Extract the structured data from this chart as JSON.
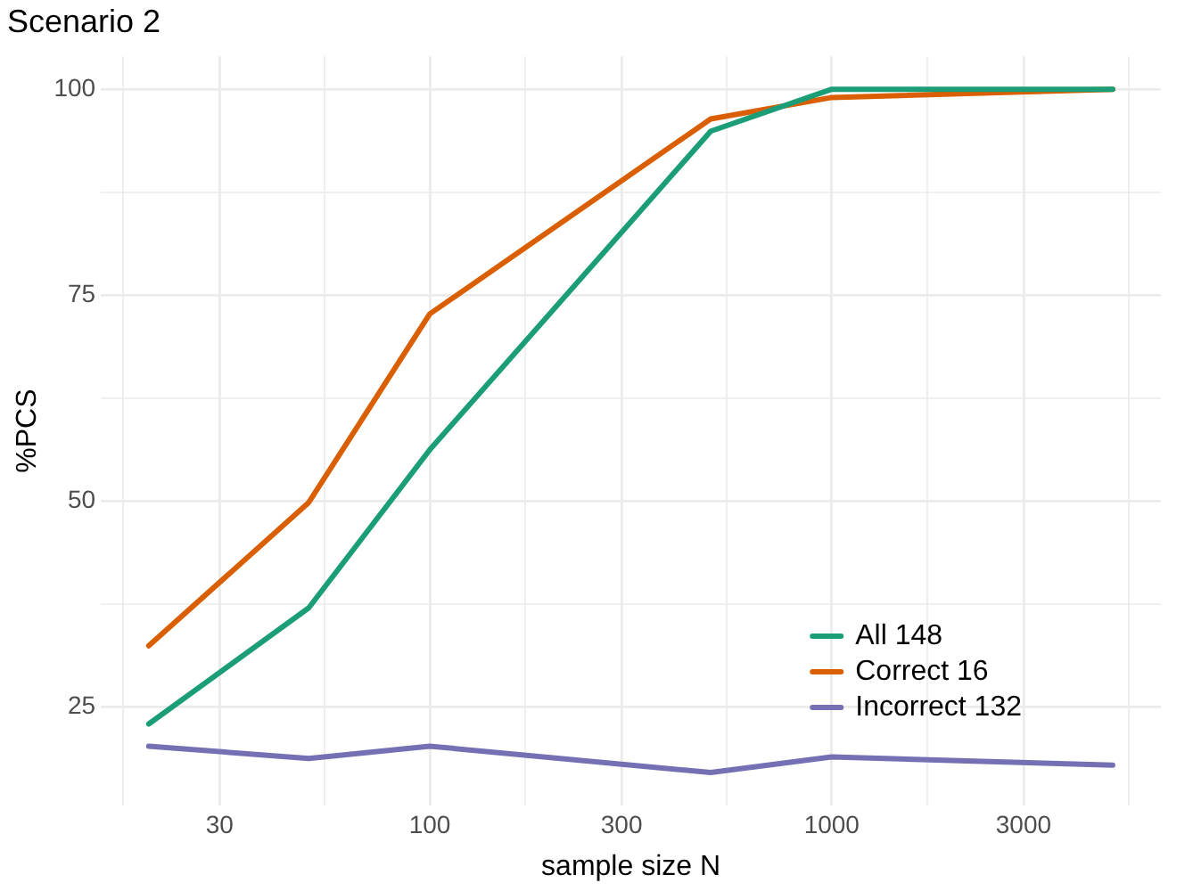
{
  "chart_data": {
    "type": "line",
    "title": "Scenario 2",
    "xlabel": "sample size N",
    "ylabel": "%PCS",
    "x": [
      20,
      50,
      100,
      500,
      1000,
      5000
    ],
    "series": [
      {
        "name": "All 148",
        "color": "#1b9e77",
        "values": [
          22.9,
          37.0,
          56.2,
          94.9,
          100,
          100
        ]
      },
      {
        "name": "Correct 16",
        "color": "#d95f02",
        "values": [
          32.4,
          49.8,
          72.7,
          96.4,
          99.0,
          100
        ]
      },
      {
        "name": "Incorrect 132",
        "color": "#7570b3",
        "values": [
          20.2,
          18.7,
          20.2,
          17.0,
          18.9,
          17.9
        ]
      }
    ],
    "log": "x",
    "xlim": [
      15.2,
      6590
    ],
    "xticks": [
      {
        "value": 17.3,
        "label": null
      },
      30,
      {
        "value": 54.8,
        "label": null
      },
      100,
      {
        "value": 173,
        "label": null
      },
      300,
      {
        "value": 548,
        "label": null
      },
      1000,
      {
        "value": 1732,
        "label": null
      },
      3000,
      {
        "value": 5477,
        "label": null
      }
    ],
    "ylim": [
      13,
      104
    ],
    "yticks": [
      25,
      {
        "value": 37.5,
        "label": null
      },
      50,
      {
        "value": 62.5,
        "label": null
      },
      75,
      {
        "value": 87.5,
        "label": null
      },
      100
    ],
    "grid": true,
    "legend": "bottom right",
    "marker": "none",
    "line_style": "solid"
  }
}
